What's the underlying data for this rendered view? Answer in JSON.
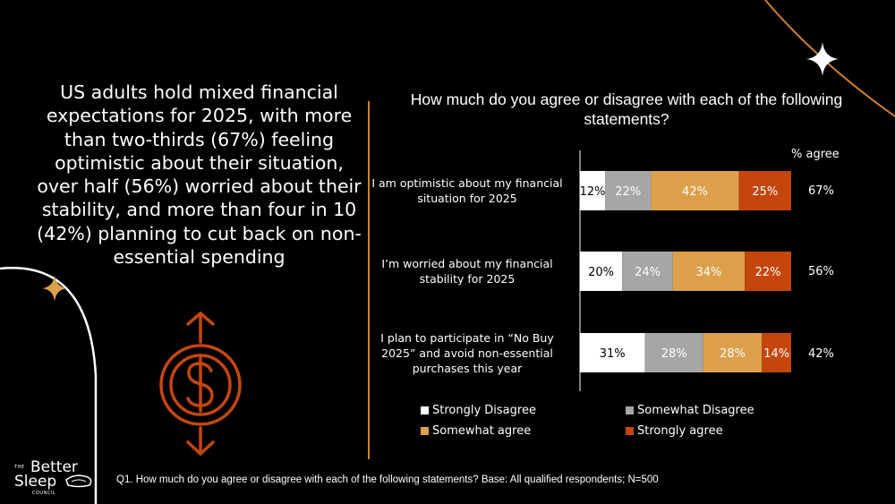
{
  "headline": "US adults hold mixed financial expectations for 2025, with more than two-thirds (67%) feeling optimistic about their situation, over half (56%) worried about their stability, and more than four in 10 (42%) planning to cut back on non-essential spending",
  "colors": {
    "accent": "#d07f2a",
    "strongly_disagree": "#ffffff",
    "somewhat_disagree": "#a6a6a6",
    "somewhat_agree": "#dca04a",
    "strongly_agree": "#c4460d"
  },
  "icons": {
    "dollar": "dollar-up-down-arrows-icon",
    "star_left": "sparkle-star-icon",
    "star_right": "sparkle-star-icon"
  },
  "chart_data": {
    "type": "bar",
    "orientation": "horizontal-stacked-100",
    "title": "How much do you agree or disagree with each of the following statements?",
    "agree_header": "% agree",
    "categories": [
      "I am optimistic about my financial situation for 2025",
      "I’m worried about my financial stability for 2025",
      "I plan to participate in “No Buy 2025” and avoid non-essential purchases this year"
    ],
    "series": [
      {
        "name": "Strongly Disagree",
        "values": [
          12,
          20,
          31
        ],
        "labels": [
          "12%",
          "20%",
          "31%"
        ]
      },
      {
        "name": "Somewhat Disagree",
        "values": [
          22,
          24,
          28
        ],
        "labels": [
          "22%",
          "24%",
          "28%"
        ]
      },
      {
        "name": "Somewhat agree",
        "values": [
          42,
          34,
          28
        ],
        "labels": [
          "42%",
          "34%",
          "28%"
        ]
      },
      {
        "name": "Strongly agree",
        "values": [
          25,
          22,
          14
        ],
        "labels": [
          "25%",
          "22%",
          "14%"
        ]
      }
    ],
    "agree_totals": [
      "67%",
      "56%",
      "42%"
    ],
    "xlim": [
      0,
      100
    ],
    "grid": false,
    "legend_position": "bottom"
  },
  "statement_lines": [
    [
      "I am optimistic about my financial",
      "situation for 2025"
    ],
    [
      "I’m worried about my financial",
      "stability for 2025"
    ],
    [
      "I plan to participate in “No Buy",
      "2025” and avoid non-essential",
      "purchases this year"
    ]
  ],
  "footnote": "Q1. How much do you agree or disagree with each of the following statements? Base: All qualified respondents; N=500",
  "logo": {
    "small_top": "THE",
    "word1": "Better",
    "word2": "Sleep",
    "small_bottom": "COUNCIL"
  }
}
